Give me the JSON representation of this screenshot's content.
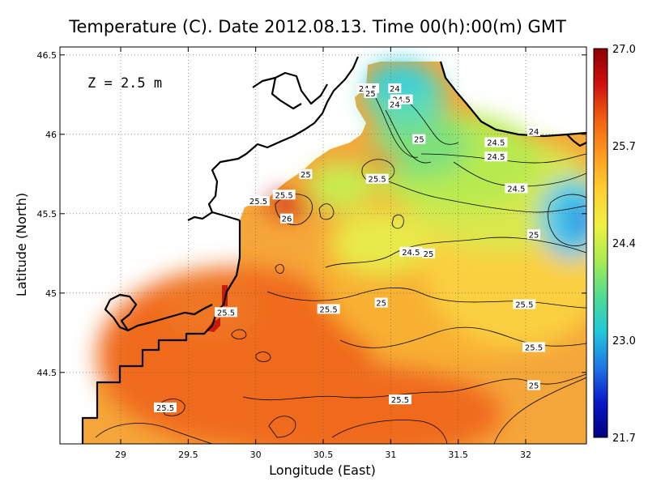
{
  "chart_data": {
    "type": "heatmap",
    "title": "Temperature (C). Date 2012.08.13. Time 00(h):00(m) GMT",
    "xlabel": "Longitude (East)",
    "ylabel": "Latitude (North)",
    "annotation": "Z = 2.5 m",
    "xlim": [
      28.55,
      32.45
    ],
    "ylim": [
      44.05,
      46.55
    ],
    "x_ticks": [
      "29",
      "29.5",
      "30",
      "30.5",
      "31",
      "31.5",
      "32"
    ],
    "y_ticks": [
      "44.5",
      "45",
      "45.5",
      "46",
      "46.5"
    ],
    "grid": true,
    "colorbar": {
      "min": 21.7,
      "max": 27.0,
      "tick_labels": [
        "27.0",
        "25.7",
        "24.4",
        "23.0",
        "21.7"
      ],
      "colors": [
        "#8b0000",
        "#d01010",
        "#f06010",
        "#ff9a20",
        "#ffd030",
        "#f0f040",
        "#a8ec50",
        "#50dc90",
        "#20c8d8",
        "#1e78e6",
        "#0a18c8",
        "#000080"
      ]
    },
    "contour_labels": [
      {
        "text": "24.5",
        "lon": 30.83,
        "lat": 46.29
      },
      {
        "text": "25",
        "lon": 30.85,
        "lat": 46.26
      },
      {
        "text": "24",
        "lon": 31.03,
        "lat": 46.29
      },
      {
        "text": "24.5",
        "lon": 31.08,
        "lat": 46.22
      },
      {
        "text": "24",
        "lon": 31.03,
        "lat": 46.19
      },
      {
        "text": "25",
        "lon": 31.21,
        "lat": 45.97
      },
      {
        "text": "24",
        "lon": 32.06,
        "lat": 46.02
      },
      {
        "text": "24.5",
        "lon": 31.78,
        "lat": 45.95
      },
      {
        "text": "24.5",
        "lon": 31.78,
        "lat": 45.86
      },
      {
        "text": "25",
        "lon": 30.37,
        "lat": 45.75
      },
      {
        "text": "25.5",
        "lon": 30.9,
        "lat": 45.72
      },
      {
        "text": "25.5",
        "lon": 30.21,
        "lat": 45.62
      },
      {
        "text": "25.5",
        "lon": 30.02,
        "lat": 45.58
      },
      {
        "text": "26",
        "lon": 30.23,
        "lat": 45.47
      },
      {
        "text": "24.5",
        "lon": 31.15,
        "lat": 45.26
      },
      {
        "text": "25",
        "lon": 31.28,
        "lat": 45.25
      },
      {
        "text": "25",
        "lon": 32.06,
        "lat": 45.37
      },
      {
        "text": "24.5",
        "lon": 31.93,
        "lat": 45.66
      },
      {
        "text": "25.5",
        "lon": 30.54,
        "lat": 44.9
      },
      {
        "text": "25",
        "lon": 30.93,
        "lat": 44.94
      },
      {
        "text": "25.5",
        "lon": 31.99,
        "lat": 44.93
      },
      {
        "text": "25.5",
        "lon": 29.78,
        "lat": 44.88
      },
      {
        "text": "25.5",
        "lon": 32.06,
        "lat": 44.66
      },
      {
        "text": "25",
        "lon": 32.06,
        "lat": 44.42
      },
      {
        "text": "25.5",
        "lon": 31.07,
        "lat": 44.33
      },
      {
        "text": "25.5",
        "lon": 29.33,
        "lat": 44.28
      }
    ]
  }
}
